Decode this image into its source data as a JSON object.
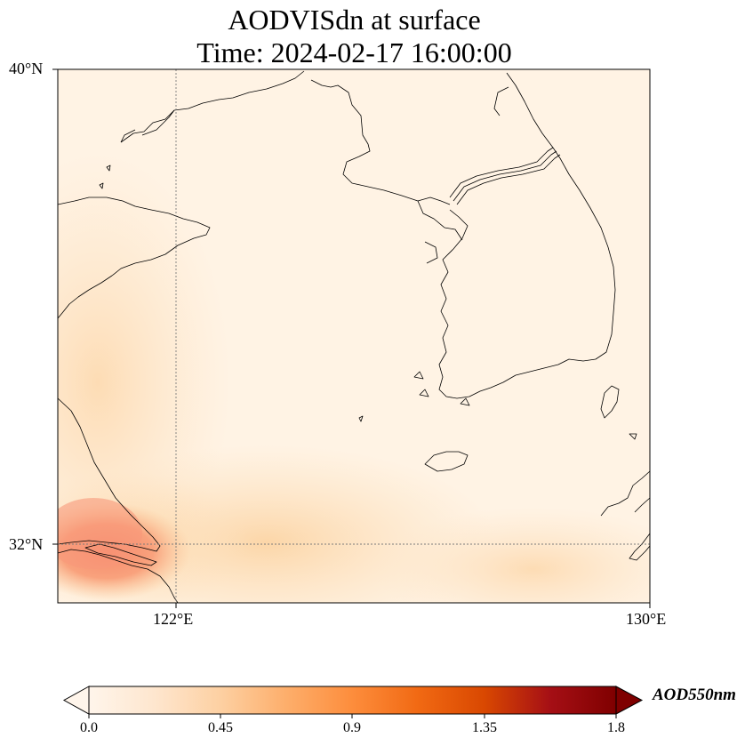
{
  "title": {
    "line1": "AODVISdn at surface",
    "line2": "Time: 2024-02-17 16:00:00"
  },
  "axes": {
    "lat_labels": [
      "40°N",
      "32°N"
    ],
    "lon_labels": [
      "122°E",
      "130°E"
    ],
    "lat_range": [
      31,
      40
    ],
    "lon_range": [
      120,
      130
    ],
    "gridlines": {
      "lat": [
        32
      ],
      "lon": [
        122
      ],
      "style": "dotted"
    }
  },
  "colorbar": {
    "label": "AOD550nm",
    "ticks": [
      "0.0",
      "0.45",
      "0.9",
      "1.35",
      "1.8"
    ],
    "range": [
      0.0,
      1.8
    ],
    "extend": "both",
    "colormap": [
      "#fff5eb",
      "#fee6ce",
      "#fdd0a2",
      "#fdae6b",
      "#fd8d3c",
      "#f16913",
      "#d94801",
      "#a50f15",
      "#7f0000"
    ]
  },
  "colors": {
    "background_low_aod": "#fff3e4",
    "moderate_aod": "#fdd9aa",
    "high_aod": "#f6886a",
    "coastline": "#000000"
  }
}
